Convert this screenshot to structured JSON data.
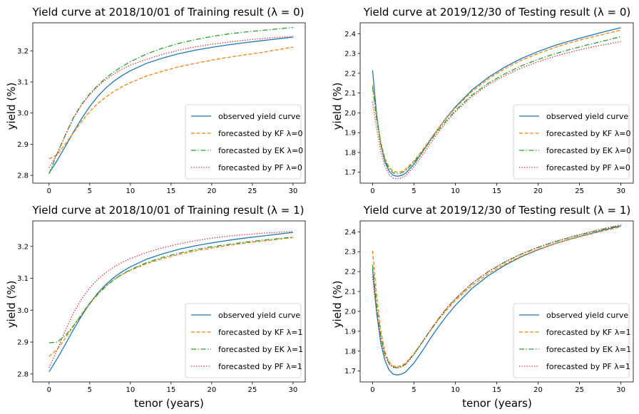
{
  "chart_data": [
    {
      "type": "line",
      "title": "Yield curve at 2018/10/01 of Training result (λ = 0)",
      "xlabel": "",
      "ylabel": "yield (%)",
      "xlim": [
        -2,
        31.5
      ],
      "ylim": [
        2.775,
        3.29
      ],
      "xticks": [
        0,
        5,
        10,
        15,
        20,
        25,
        30
      ],
      "yticks": [
        2.8,
        2.9,
        3.0,
        3.1,
        3.2
      ],
      "ytick_labels": [
        "2.8",
        "2.9",
        "3.0",
        "3.1",
        "3.2"
      ],
      "legend_position": "lower right",
      "x": [
        0,
        1,
        2,
        3,
        4,
        5,
        6,
        7,
        8,
        9,
        10,
        12,
        14,
        16,
        18,
        20,
        22,
        24,
        26,
        28,
        30
      ],
      "series": [
        {
          "name": "observed yield curve",
          "color": "#1f77b4",
          "style": "solid",
          "values": [
            2.807,
            2.848,
            2.893,
            2.939,
            2.982,
            3.021,
            3.054,
            3.081,
            3.103,
            3.121,
            3.136,
            3.16,
            3.177,
            3.191,
            3.202,
            3.211,
            3.219,
            3.226,
            3.232,
            3.238,
            3.244
          ]
        },
        {
          "name": "forecasted by KF λ=0",
          "color": "#ff7f0e",
          "style": "dashed",
          "values": [
            2.853,
            2.866,
            2.901,
            2.937,
            2.972,
            3.005,
            3.031,
            3.052,
            3.07,
            3.085,
            3.098,
            3.119,
            3.135,
            3.149,
            3.16,
            3.17,
            3.179,
            3.187,
            3.194,
            3.203,
            3.212
          ]
        },
        {
          "name": "forecasted by EK λ=0",
          "color": "#2ca02c",
          "style": "dashdot",
          "values": [
            2.805,
            2.87,
            2.93,
            2.986,
            3.028,
            3.062,
            3.089,
            3.113,
            3.133,
            3.15,
            3.165,
            3.19,
            3.209,
            3.224,
            3.236,
            3.246,
            3.254,
            3.26,
            3.265,
            3.27,
            3.275
          ]
        },
        {
          "name": "forecasted by PF λ=0",
          "color": "#d62728",
          "style": "dotted",
          "values": [
            2.824,
            2.87,
            2.928,
            2.983,
            3.026,
            3.059,
            3.086,
            3.108,
            3.126,
            3.141,
            3.154,
            3.173,
            3.189,
            3.202,
            3.213,
            3.221,
            3.228,
            3.234,
            3.239,
            3.243,
            3.246
          ]
        }
      ]
    },
    {
      "type": "line",
      "title": "Yield curve at 2019/12/30 of Testing result (λ = 0)",
      "xlabel": "",
      "ylabel": "yield (%)",
      "xlim": [
        -1.5,
        31.5
      ],
      "ylim": [
        1.645,
        2.455
      ],
      "xticks": [
        0,
        5,
        10,
        15,
        20,
        25,
        30
      ],
      "yticks": [
        1.7,
        1.8,
        1.9,
        2.0,
        2.1,
        2.2,
        2.3,
        2.4
      ],
      "ytick_labels": [
        "1.7",
        "1.8",
        "1.9",
        "2.0",
        "2.1",
        "2.2",
        "2.3",
        "2.4"
      ],
      "legend_position": "lower right",
      "x": [
        0,
        0.5,
        1,
        1.5,
        2,
        2.5,
        3,
        3.5,
        4,
        5,
        6,
        7,
        8,
        9,
        10,
        12,
        14,
        16,
        18,
        20,
        22,
        24,
        26,
        28,
        30
      ],
      "series": [
        {
          "name": "observed yield curve",
          "color": "#1f77b4",
          "style": "solid",
          "values": [
            2.215,
            1.99,
            1.84,
            1.752,
            1.705,
            1.684,
            1.68,
            1.684,
            1.695,
            1.74,
            1.8,
            1.865,
            1.925,
            1.98,
            2.03,
            2.115,
            2.18,
            2.232,
            2.275,
            2.31,
            2.34,
            2.365,
            2.388,
            2.41,
            2.43
          ]
        },
        {
          "name": "forecasted by KF λ=0",
          "color": "#ff7f0e",
          "style": "dashed",
          "values": [
            2.14,
            1.975,
            1.852,
            1.77,
            1.725,
            1.705,
            1.7,
            1.704,
            1.715,
            1.757,
            1.81,
            1.868,
            1.925,
            1.978,
            2.025,
            2.108,
            2.172,
            2.224,
            2.266,
            2.3,
            2.33,
            2.356,
            2.378,
            2.398,
            2.418
          ]
        },
        {
          "name": "forecasted by EK λ=0",
          "color": "#2ca02c",
          "style": "dashdot",
          "values": [
            2.13,
            1.965,
            1.842,
            1.762,
            1.718,
            1.697,
            1.693,
            1.697,
            1.708,
            1.75,
            1.803,
            1.86,
            1.915,
            1.966,
            2.012,
            2.09,
            2.15,
            2.198,
            2.238,
            2.27,
            2.298,
            2.322,
            2.344,
            2.364,
            2.385
          ]
        },
        {
          "name": "forecasted by PF λ=0",
          "color": "#d62728",
          "style": "dotted",
          "values": [
            2.055,
            1.92,
            1.805,
            1.73,
            1.688,
            1.67,
            1.667,
            1.671,
            1.683,
            1.727,
            1.785,
            1.847,
            1.905,
            1.958,
            2.005,
            2.083,
            2.142,
            2.189,
            2.227,
            2.258,
            2.285,
            2.308,
            2.328,
            2.345,
            2.36
          ]
        }
      ]
    },
    {
      "type": "line",
      "title": "Yield curve at 2018/10/01 of Training result (λ = 1)",
      "xlabel": "tenor (years)",
      "ylabel": "yield (%)",
      "xlim": [
        -2,
        31.5
      ],
      "ylim": [
        2.775,
        3.28
      ],
      "xticks": [
        0,
        5,
        10,
        15,
        20,
        25,
        30
      ],
      "yticks": [
        2.8,
        2.9,
        3.0,
        3.1,
        3.2
      ],
      "ytick_labels": [
        "2.8",
        "2.9",
        "3.0",
        "3.1",
        "3.2"
      ],
      "legend_position": "lower right",
      "x": [
        0,
        1,
        2,
        3,
        4,
        5,
        6,
        7,
        8,
        9,
        10,
        12,
        14,
        16,
        18,
        20,
        22,
        24,
        26,
        28,
        30
      ],
      "series": [
        {
          "name": "observed yield curve",
          "color": "#1f77b4",
          "style": "solid",
          "values": [
            2.807,
            2.848,
            2.893,
            2.939,
            2.982,
            3.021,
            3.054,
            3.081,
            3.103,
            3.121,
            3.136,
            3.16,
            3.177,
            3.191,
            3.202,
            3.211,
            3.219,
            3.226,
            3.232,
            3.238,
            3.244
          ]
        },
        {
          "name": "forecasted by KF λ=1",
          "color": "#ff7f0e",
          "style": "dashed",
          "values": [
            2.855,
            2.877,
            2.912,
            2.95,
            2.988,
            3.023,
            3.052,
            3.076,
            3.096,
            3.112,
            3.125,
            3.146,
            3.162,
            3.175,
            3.186,
            3.195,
            3.203,
            3.21,
            3.216,
            3.222,
            3.228
          ]
        },
        {
          "name": "forecasted by EK λ=1",
          "color": "#2ca02c",
          "style": "dashdot",
          "values": [
            2.898,
            2.9,
            2.92,
            2.951,
            2.986,
            3.02,
            3.05,
            3.075,
            3.096,
            3.113,
            3.127,
            3.149,
            3.166,
            3.179,
            3.19,
            3.199,
            3.206,
            3.213,
            3.219,
            3.224,
            3.229
          ]
        },
        {
          "name": "forecasted by PF λ=1",
          "color": "#d62728",
          "style": "dotted",
          "values": [
            2.82,
            2.876,
            2.936,
            2.991,
            3.035,
            3.07,
            3.097,
            3.118,
            3.136,
            3.15,
            3.162,
            3.181,
            3.196,
            3.208,
            3.218,
            3.226,
            3.232,
            3.237,
            3.241,
            3.244,
            3.247
          ]
        }
      ]
    },
    {
      "type": "line",
      "title": "Yield curve at 2019/12/30 of Testing result (λ = 1)",
      "xlabel": "tenor (years)",
      "ylabel": "yield (%)",
      "xlim": [
        -1.5,
        31.5
      ],
      "ylim": [
        1.645,
        2.455
      ],
      "xticks": [
        0,
        5,
        10,
        15,
        20,
        25,
        30
      ],
      "yticks": [
        1.7,
        1.8,
        1.9,
        2.0,
        2.1,
        2.2,
        2.3,
        2.4
      ],
      "ytick_labels": [
        "1.7",
        "1.8",
        "1.9",
        "2.0",
        "2.1",
        "2.2",
        "2.3",
        "2.4"
      ],
      "legend_position": "lower right",
      "x": [
        0,
        0.5,
        1,
        1.5,
        2,
        2.5,
        3,
        3.5,
        4,
        5,
        6,
        7,
        8,
        9,
        10,
        12,
        14,
        16,
        18,
        20,
        22,
        24,
        26,
        28,
        30
      ],
      "series": [
        {
          "name": "observed yield curve",
          "color": "#1f77b4",
          "style": "solid",
          "values": [
            2.215,
            1.99,
            1.84,
            1.752,
            1.705,
            1.684,
            1.68,
            1.684,
            1.695,
            1.74,
            1.8,
            1.865,
            1.925,
            1.98,
            2.03,
            2.115,
            2.18,
            2.232,
            2.275,
            2.31,
            2.34,
            2.365,
            2.388,
            2.41,
            2.43
          ]
        },
        {
          "name": "forecasted by KF λ=1",
          "color": "#ff7f0e",
          "style": "dashed",
          "values": [
            2.305,
            2.08,
            1.9,
            1.795,
            1.745,
            1.725,
            1.722,
            1.727,
            1.74,
            1.787,
            1.845,
            1.905,
            1.96,
            2.01,
            2.055,
            2.13,
            2.19,
            2.238,
            2.278,
            2.312,
            2.34,
            2.364,
            2.386,
            2.406,
            2.425
          ]
        },
        {
          "name": "forecasted by EK λ=1",
          "color": "#2ca02c",
          "style": "dashdot",
          "values": [
            2.235,
            2.03,
            1.875,
            1.785,
            1.738,
            1.72,
            1.717,
            1.722,
            1.735,
            1.785,
            1.845,
            1.907,
            1.965,
            2.018,
            2.063,
            2.14,
            2.2,
            2.248,
            2.288,
            2.321,
            2.349,
            2.373,
            2.395,
            2.415,
            2.433
          ]
        },
        {
          "name": "forecasted by PF λ=1",
          "color": "#d62728",
          "style": "dotted",
          "values": [
            2.175,
            1.99,
            1.855,
            1.775,
            1.735,
            1.718,
            1.715,
            1.72,
            1.733,
            1.782,
            1.843,
            1.906,
            1.965,
            2.018,
            2.063,
            2.141,
            2.201,
            2.25,
            2.29,
            2.323,
            2.351,
            2.375,
            2.397,
            2.417,
            2.435
          ]
        }
      ]
    }
  ]
}
